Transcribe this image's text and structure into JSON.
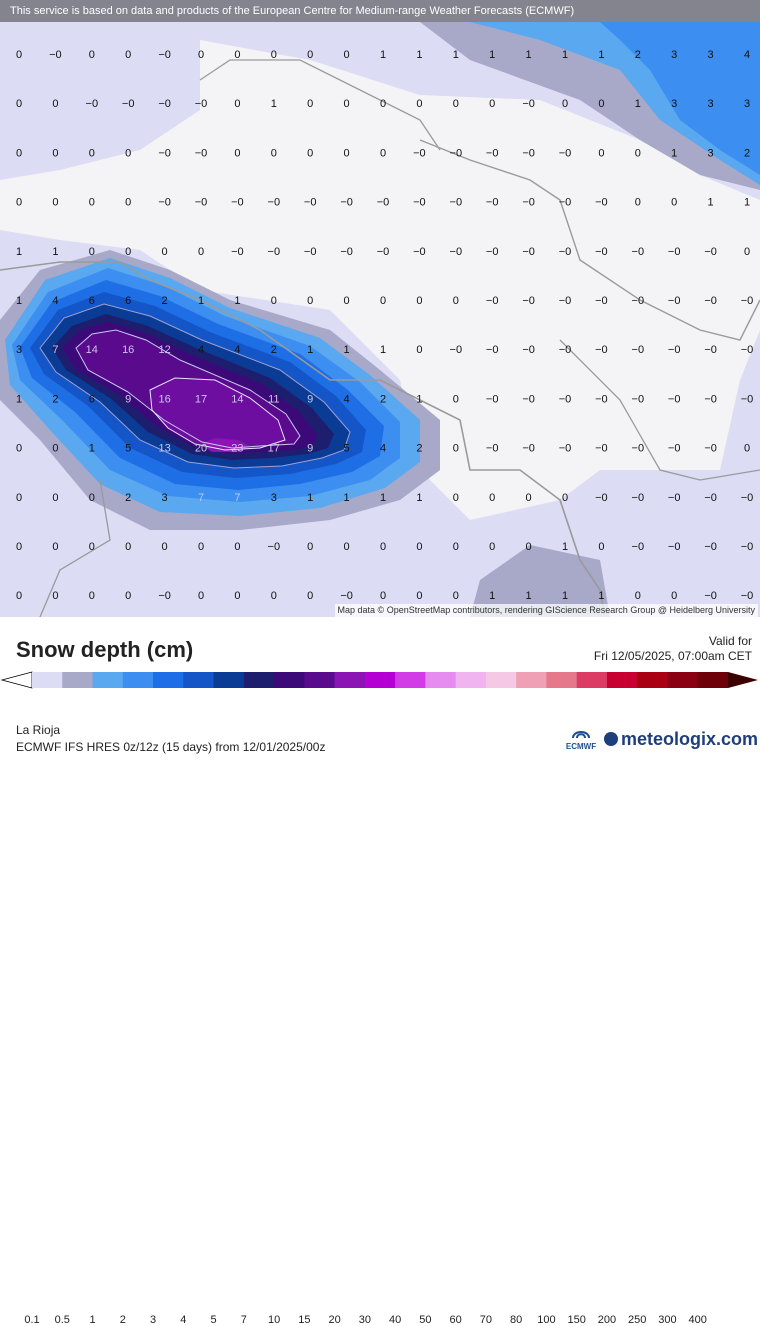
{
  "banner": "This service is based on data and products of the European Centre for Medium-range Weather Forecasts (ECMWF)",
  "attribution": "Map data © OpenStreetMap contributors, rendering GIScience Research Group @ Heidelberg University",
  "legend": {
    "title": "Snow depth (cm)",
    "valid_label": "Valid for",
    "valid_time": "Fri 12/05/2025, 07:00am CET",
    "region": "La Rioja",
    "model": "ECMWF IFS HRES 0z/12z (15 days) from 12/01/2025/00z",
    "ticks": [
      "0.1",
      "0.5",
      "1",
      "2",
      "3",
      "4",
      "5",
      "7",
      "10",
      "15",
      "20",
      "30",
      "40",
      "50",
      "60",
      "70",
      "80",
      "100",
      "150",
      "200",
      "250",
      "300",
      "400"
    ],
    "colors": [
      "#dcdcf4",
      "#a8a8c8",
      "#5aa8f0",
      "#3c8ef0",
      "#1e6ee6",
      "#1456c8",
      "#0a3c96",
      "#1e1e6e",
      "#3c0a78",
      "#5a0a8c",
      "#8c14b4",
      "#b400d2",
      "#d23ce6",
      "#e68cf0",
      "#f0b4f0",
      "#f5c8e6",
      "#f0a0b4",
      "#e6788c",
      "#dc3c64",
      "#c80032",
      "#aa0014",
      "#8c0014",
      "#6e000a"
    ]
  },
  "branding": {
    "ecmwf": "ECMWF",
    "meteologix": "meteologix.com"
  },
  "grid": {
    "rows": [
      [
        "0",
        "−0",
        "0",
        "0",
        "−0",
        "0",
        "0",
        "0",
        "0",
        "0",
        "1",
        "1",
        "1",
        "1",
        "1",
        "1",
        "1",
        "2",
        "3",
        "3",
        "4"
      ],
      [
        "0",
        "0",
        "−0",
        "−0",
        "−0",
        "−0",
        "0",
        "1",
        "0",
        "0",
        "0",
        "0",
        "0",
        "0",
        "−0",
        "0",
        "0",
        "1",
        "3",
        "3",
        "3"
      ],
      [
        "0",
        "0",
        "0",
        "0",
        "−0",
        "−0",
        "0",
        "0",
        "0",
        "0",
        "0",
        "−0",
        "−0",
        "−0",
        "−0",
        "−0",
        "0",
        "0",
        "1",
        "3",
        "2"
      ],
      [
        "0",
        "0",
        "0",
        "0",
        "−0",
        "−0",
        "−0",
        "−0",
        "−0",
        "−0",
        "−0",
        "−0",
        "−0",
        "−0",
        "−0",
        "−0",
        "−0",
        "0",
        "0",
        "1",
        "1"
      ],
      [
        "1",
        "1",
        "0",
        "0",
        "0",
        "0",
        "−0",
        "−0",
        "−0",
        "−0",
        "−0",
        "−0",
        "−0",
        "−0",
        "−0",
        "−0",
        "−0",
        "−0",
        "−0",
        "−0",
        "0"
      ],
      [
        "1",
        "4",
        "6",
        "6",
        "2",
        "1",
        "1",
        "0",
        "0",
        "0",
        "0",
        "0",
        "0",
        "−0",
        "−0",
        "−0",
        "−0",
        "−0",
        "−0",
        "−0",
        "−0"
      ],
      [
        "3",
        "7",
        "14",
        "16",
        "12",
        "4",
        "4",
        "2",
        "1",
        "1",
        "1",
        "0",
        "−0",
        "−0",
        "−0",
        "−0",
        "−0",
        "−0",
        "−0",
        "−0",
        "−0"
      ],
      [
        "1",
        "2",
        "6",
        "9",
        "16",
        "17",
        "14",
        "11",
        "9",
        "4",
        "2",
        "1",
        "0",
        "−0",
        "−0",
        "−0",
        "−0",
        "−0",
        "−0",
        "−0",
        "−0"
      ],
      [
        "0",
        "0",
        "1",
        "5",
        "13",
        "20",
        "23",
        "17",
        "9",
        "5",
        "4",
        "2",
        "0",
        "−0",
        "−0",
        "−0",
        "−0",
        "−0",
        "−0",
        "−0",
        "0"
      ],
      [
        "0",
        "0",
        "0",
        "2",
        "3",
        "7",
        "7",
        "3",
        "1",
        "1",
        "1",
        "1",
        "0",
        "0",
        "0",
        "0",
        "−0",
        "−0",
        "−0",
        "−0",
        "−0"
      ],
      [
        "0",
        "0",
        "0",
        "0",
        "0",
        "0",
        "0",
        "−0",
        "0",
        "0",
        "0",
        "0",
        "0",
        "0",
        "0",
        "1",
        "0",
        "−0",
        "−0",
        "−0",
        "−0"
      ],
      [
        "0",
        "0",
        "0",
        "0",
        "−0",
        "0",
        "0",
        "0",
        "0",
        "−0",
        "0",
        "0",
        "0",
        "1",
        "1",
        "1",
        "1",
        "0",
        "0",
        "−0",
        "−0"
      ]
    ]
  }
}
